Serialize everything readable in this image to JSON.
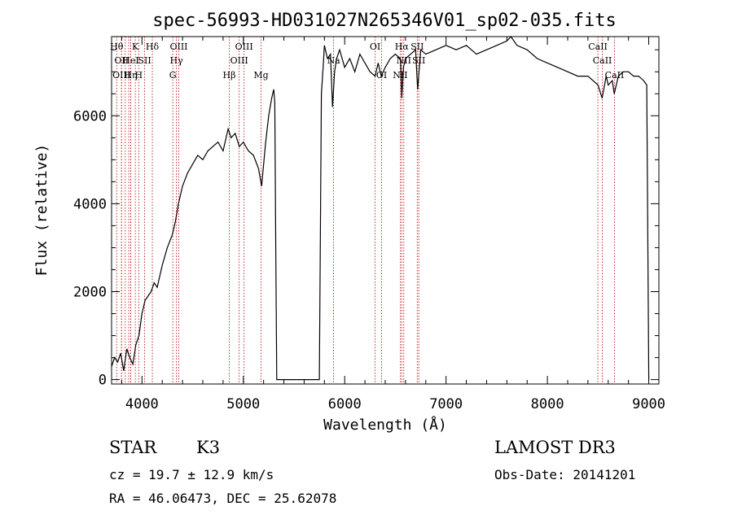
{
  "chart_data": {
    "type": "line",
    "title": "spec-56993-HD031027N265346V01_sp02-035.fits",
    "xlabel": "Wavelength (Å)",
    "ylabel": "Flux (relative)",
    "xlim": [
      3700,
      9100
    ],
    "ylim": [
      -100,
      7800
    ],
    "xticks": [
      4000,
      5000,
      6000,
      7000,
      8000,
      9000
    ],
    "yticks": [
      0,
      2000,
      4000,
      6000
    ],
    "grid": false,
    "series": [
      {
        "x": [
          3700,
          3730,
          3760,
          3790,
          3820,
          3850,
          3880,
          3910,
          3940,
          3970,
          4000,
          4030,
          4060,
          4090,
          4120,
          4150,
          4200,
          4250,
          4300,
          4330,
          4360,
          4400,
          4450,
          4500,
          4550,
          4600,
          4650,
          4700,
          4750,
          4800,
          4850,
          4880,
          4920,
          4960,
          5000,
          5050,
          5100,
          5150,
          5180,
          5220,
          5250,
          5280,
          5300,
          5310,
          5320,
          5330,
          5700,
          5750,
          5770,
          5790,
          5800,
          5830,
          5860,
          5880,
          5900,
          5920,
          5950,
          6000,
          6050,
          6100,
          6150,
          6200,
          6250,
          6300,
          6330,
          6360,
          6400,
          6450,
          6500,
          6550,
          6563,
          6580,
          6600,
          6650,
          6700,
          6720,
          6750,
          6800,
          6900,
          7000,
          7100,
          7200,
          7300,
          7400,
          7500,
          7600,
          7640,
          7700,
          7800,
          7900,
          8000,
          8100,
          8200,
          8300,
          8400,
          8450,
          8500,
          8540,
          8580,
          8600,
          8640,
          8660,
          8700,
          8750,
          8800,
          8850,
          8900,
          8950,
          8980,
          9000
        ],
        "y": [
          300,
          500,
          400,
          600,
          200,
          700,
          500,
          350,
          800,
          1000,
          1500,
          1800,
          1900,
          2000,
          2200,
          2100,
          2600,
          3000,
          3300,
          3600,
          4000,
          4400,
          4700,
          4900,
          5100,
          5000,
          5200,
          5300,
          5400,
          5200,
          5700,
          5500,
          5600,
          5300,
          5400,
          5200,
          5100,
          4800,
          4400,
          5400,
          6000,
          6400,
          6600,
          6300,
          3000,
          0,
          0,
          0,
          6500,
          7200,
          7600,
          7300,
          7400,
          6200,
          7000,
          7300,
          7500,
          7100,
          7300,
          7000,
          7400,
          7200,
          7000,
          6900,
          7200,
          6900,
          7100,
          7300,
          7400,
          7300,
          6400,
          7100,
          7300,
          7400,
          7500,
          6600,
          7500,
          7400,
          7500,
          7600,
          7500,
          7600,
          7400,
          7500,
          7600,
          7700,
          7800,
          7600,
          7500,
          7300,
          7200,
          7100,
          7000,
          6900,
          6900,
          6800,
          6700,
          6400,
          6900,
          6700,
          6800,
          6500,
          6900,
          7000,
          7000,
          6900,
          6900,
          6800,
          6700,
          0
        ]
      }
    ],
    "spectral_lines": [
      {
        "x": 3750,
        "label": "Hθ",
        "row": 0
      },
      {
        "x": 3798,
        "label": "OII",
        "row": 1
      },
      {
        "x": 3798,
        "label": "OIII",
        "row": 2
      },
      {
        "x": 3835,
        "label": "",
        "row": 0
      },
      {
        "x": 3869,
        "label": "",
        "row": 0
      },
      {
        "x": 3889,
        "label": "HeI",
        "row": 1
      },
      {
        "x": 3889,
        "label": "Hη",
        "row": 2
      },
      {
        "x": 3934,
        "label": "K",
        "row": 0
      },
      {
        "x": 3968,
        "label": "H",
        "row": 2
      },
      {
        "x": 4026,
        "label": "SII",
        "row": 1
      },
      {
        "x": 4102,
        "label": "Hδ",
        "row": 0
      },
      {
        "x": 4304,
        "label": "G",
        "row": 2
      },
      {
        "x": 4340,
        "label": "Hγ",
        "row": 1
      },
      {
        "x": 4363,
        "label": "OIII",
        "row": 0
      },
      {
        "x": 4861,
        "label": "Hβ",
        "row": 2
      },
      {
        "x": 4959,
        "label": "OIII",
        "row": 1
      },
      {
        "x": 5007,
        "label": "OIII",
        "row": 0
      },
      {
        "x": 5175,
        "label": "Mg",
        "row": 2
      },
      {
        "x": 5890,
        "label": "Na",
        "row": 1
      },
      {
        "x": 6300,
        "label": "OI",
        "row": 0
      },
      {
        "x": 6364,
        "label": "OI",
        "row": 2
      },
      {
        "x": 6548,
        "label": "NII",
        "row": 2
      },
      {
        "x": 6563,
        "label": "Hα",
        "row": 0
      },
      {
        "x": 6583,
        "label": "NII",
        "row": 1
      },
      {
        "x": 6716,
        "label": "SII",
        "row": 0
      },
      {
        "x": 6731,
        "label": "SII",
        "row": 1
      },
      {
        "x": 8498,
        "label": "CaII",
        "row": 0
      },
      {
        "x": 8542,
        "label": "CaII",
        "row": 1
      },
      {
        "x": 8662,
        "label": "CaII",
        "row": 2
      }
    ],
    "line_color": "#000000",
    "marker_color": "#b00000"
  },
  "info": {
    "object_type": "STAR",
    "subclass": "K3",
    "survey": "LAMOST DR3",
    "cz": "cz = 19.7 ± 12.9 km/s",
    "obs_date": "Obs-Date: 20141201",
    "coords": "RA =  46.06473, DEC =  25.62078"
  }
}
